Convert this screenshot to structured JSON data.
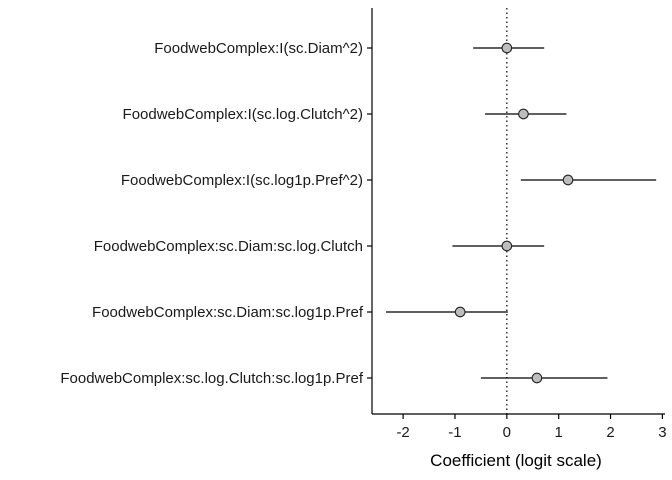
{
  "chart_data": {
    "type": "scatter",
    "subtype": "coefficient-plot",
    "title": "",
    "xlabel": "Coefficient (logit scale)",
    "ylabel": "",
    "xlim": [
      -2.6,
      3.05
    ],
    "xticks": [
      -2,
      -1,
      0,
      1,
      2,
      3
    ],
    "xtick_labels": [
      "-2",
      "-1",
      "0",
      "1",
      "2",
      "3"
    ],
    "reference_line": {
      "x": 0,
      "style": "dotted"
    },
    "grid": false,
    "legend": "none",
    "point_color": "#bdbdbd",
    "point_edge_color": "#222222",
    "line_color": "#000000",
    "terms": [
      {
        "label": "FoodwebComplex:I(sc.Diam^2)",
        "estimate": 0.0,
        "low": -0.65,
        "high": 0.72
      },
      {
        "label": "FoodwebComplex:I(sc.log.Clutch^2)",
        "estimate": 0.32,
        "low": -0.42,
        "high": 1.15
      },
      {
        "label": "FoodwebComplex:I(sc.log1p.Pref^2)",
        "estimate": 1.18,
        "low": 0.27,
        "high": 2.88
      },
      {
        "label": "FoodwebComplex:sc.Diam:sc.log.Clutch",
        "estimate": 0.0,
        "low": -1.05,
        "high": 0.72
      },
      {
        "label": "FoodwebComplex:sc.Diam:sc.log1p.Pref",
        "estimate": -0.9,
        "low": -2.33,
        "high": 0.02
      },
      {
        "label": "FoodwebComplex:sc.log.Clutch:sc.log1p.Pref",
        "estimate": 0.58,
        "low": -0.5,
        "high": 1.94
      }
    ]
  }
}
